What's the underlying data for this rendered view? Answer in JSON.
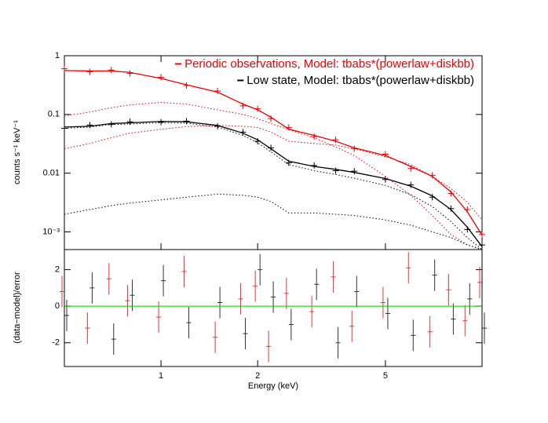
{
  "chart_data": {
    "type": "spectrum",
    "x_label": "Energy (keV)",
    "y_label": "counts s⁻¹ keV⁻¹",
    "y2_label": "(data−model)/error",
    "log_x": true,
    "log_y": true,
    "legend": "top-right",
    "x": [
      0.5,
      0.6,
      0.7,
      0.8,
      1,
      1.2,
      1.5,
      1.8,
      2,
      2.2,
      2.5,
      3,
      3.5,
      4,
      5,
      6,
      7,
      8,
      9,
      10
    ],
    "xlim": [
      0.5,
      10
    ],
    "xticks": [
      1,
      2,
      5
    ],
    "ylim": [
      0.0005,
      1
    ],
    "yticks": [
      1,
      0.1,
      0.01,
      {
        "value": 0.001,
        "label": "10⁻³"
      }
    ],
    "y2lim": [
      -3.3,
      3.1
    ],
    "y2ticks": [
      -2,
      0,
      2
    ],
    "zero_color": "#00cc00",
    "series": [
      {
        "name": "Periodic observations, Model: tbabs*(powerlaw+diskbb)",
        "color": "#ee0000",
        "values": [
          0.6,
          0.53,
          0.57,
          0.5,
          0.43,
          0.31,
          0.25,
          0.14,
          0.125,
          0.085,
          0.06,
          0.042,
          0.037,
          0.026,
          0.021,
          0.012,
          0.0092,
          0.0045,
          0.0024,
          0.0009
        ],
        "model": [
          0.56,
          0.55,
          0.55,
          0.52,
          0.41,
          0.32,
          0.24,
          0.15,
          0.12,
          0.09,
          0.056,
          0.044,
          0.035,
          0.027,
          0.02,
          0.013,
          0.0088,
          0.0048,
          0.0022,
          0.00088
        ],
        "components": [
          [
            0.094,
            0.11,
            0.13,
            0.145,
            0.16,
            0.15,
            0.12,
            0.1,
            0.085,
            0.07,
            0.055,
            0.04,
            0.028,
            0.02,
            0.0088,
            0.0042,
            0.0019,
            0.0009,
            0.0006,
            0.0005
          ],
          [
            0.026,
            0.032,
            0.04,
            0.048,
            0.056,
            0.062,
            0.065,
            0.063,
            0.06,
            0.05,
            0.035,
            0.032,
            0.03,
            0.026,
            0.019,
            0.014,
            0.0088,
            0.0055,
            0.0032,
            0.0016
          ]
        ],
        "residuals": [
          0.8,
          -1.2,
          1.5,
          0.3,
          -0.6,
          1.9,
          -1.7,
          0.4,
          1.1,
          -2.2,
          0.7,
          -0.3,
          1.6,
          -1.1,
          0.2,
          2.1,
          -1.4,
          0.9,
          -0.8,
          1.3
        ]
      },
      {
        "name": "Low state, Model: tbabs*(powerlaw+diskbb)",
        "color": "#000000",
        "values": [
          0.058,
          0.066,
          0.068,
          0.075,
          0.074,
          0.077,
          0.063,
          0.05,
          0.035,
          0.027,
          0.015,
          0.0135,
          0.011,
          0.0108,
          0.0078,
          0.0063,
          0.0039,
          0.0025,
          0.0011,
          0.0006
        ],
        "model": [
          0.061,
          0.063,
          0.07,
          0.072,
          0.076,
          0.075,
          0.065,
          0.048,
          0.037,
          0.026,
          0.016,
          0.013,
          0.0116,
          0.0103,
          0.0081,
          0.006,
          0.0041,
          0.0024,
          0.0012,
          0.00056
        ],
        "components": [
          [
            0.058,
            0.061,
            0.067,
            0.069,
            0.072,
            0.071,
            0.061,
            0.044,
            0.033,
            0.023,
            0.014,
            0.011,
            0.0095,
            0.0082,
            0.0062,
            0.0043,
            0.0027,
            0.0015,
            0.0008,
            0.0005
          ],
          [
            0.002,
            0.0024,
            0.0028,
            0.0031,
            0.0035,
            0.0039,
            0.0044,
            0.0042,
            0.0039,
            0.0033,
            0.0021,
            0.0021,
            0.002,
            0.0019,
            0.0016,
            0.0013,
            0.001,
            0.0008,
            0.0006,
            0.0005
          ]
        ],
        "residuals": [
          -0.5,
          1.0,
          -1.8,
          0.6,
          1.4,
          -0.9,
          0.2,
          -1.5,
          2.0,
          0.5,
          -1.0,
          1.2,
          -2.0,
          0.8,
          -0.4,
          -1.6,
          1.7,
          -0.7,
          0.4,
          -1.2
        ]
      }
    ]
  }
}
